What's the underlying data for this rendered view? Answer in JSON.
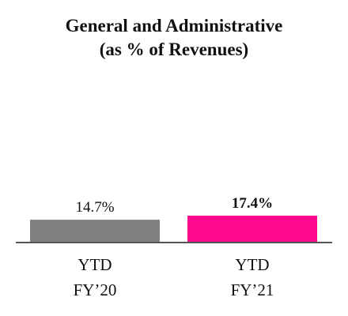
{
  "chart_data": {
    "type": "bar",
    "title": "General and Administrative",
    "subtitle": "(as % of Revenues)",
    "categories": [
      [
        "YTD",
        "FY’20"
      ],
      [
        "YTD",
        "FY’21"
      ]
    ],
    "values": [
      14.7,
      17.4
    ],
    "value_labels": [
      "14.7%",
      "17.4%"
    ],
    "value_label_bold": [
      false,
      true
    ],
    "colors": [
      "#808080",
      "#ff0a8f"
    ],
    "axis_color": "#555555",
    "ylim": [
      0,
      100
    ],
    "grid": false,
    "legend": "none"
  }
}
